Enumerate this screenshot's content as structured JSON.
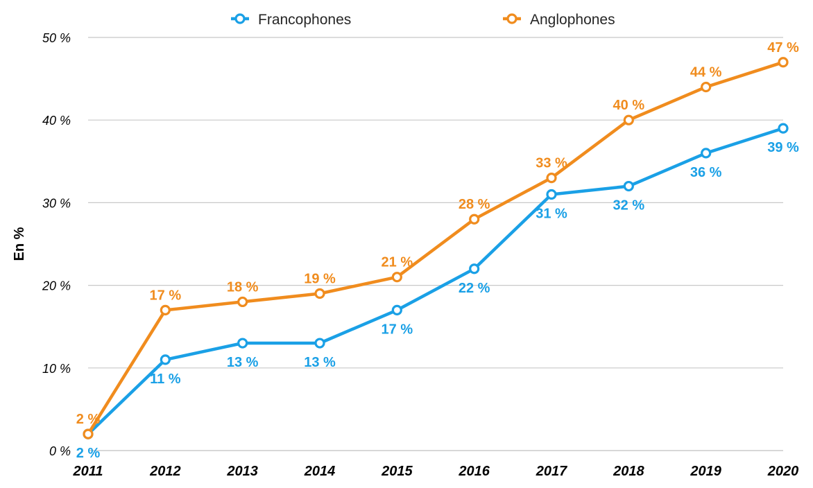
{
  "chart_data": {
    "type": "line",
    "title": "",
    "xlabel": "",
    "ylabel": "En %",
    "ylim": [
      0,
      50
    ],
    "yticks": [
      0,
      10,
      20,
      30,
      40,
      50
    ],
    "ytick_labels": [
      "0 %",
      "10 %",
      "20 %",
      "30 %",
      "40 %",
      "50 %"
    ],
    "grid": true,
    "legend_position": "top-center",
    "x": [
      "2011",
      "2012",
      "2013",
      "2014",
      "2015",
      "2016",
      "2017",
      "2018",
      "2019",
      "2020"
    ],
    "series": [
      {
        "name": "Francophones",
        "color": "#1aa0e6",
        "values": [
          2,
          11,
          13,
          13,
          17,
          22,
          31,
          32,
          36,
          39
        ],
        "labels": [
          "2 %",
          "11 %",
          "13 %",
          "13 %",
          "17 %",
          "22 %",
          "31 %",
          "32 %",
          "36 %",
          "39 %"
        ],
        "label_side": "below"
      },
      {
        "name": "Anglophones",
        "color": "#f08c1e",
        "values": [
          2,
          17,
          18,
          19,
          21,
          28,
          33,
          40,
          44,
          47
        ],
        "labels": [
          "2 %",
          "17 %",
          "18 %",
          "19 %",
          "21 %",
          "28 %",
          "33 %",
          "40 %",
          "44 %",
          "47 %"
        ],
        "label_side": "above"
      }
    ]
  }
}
